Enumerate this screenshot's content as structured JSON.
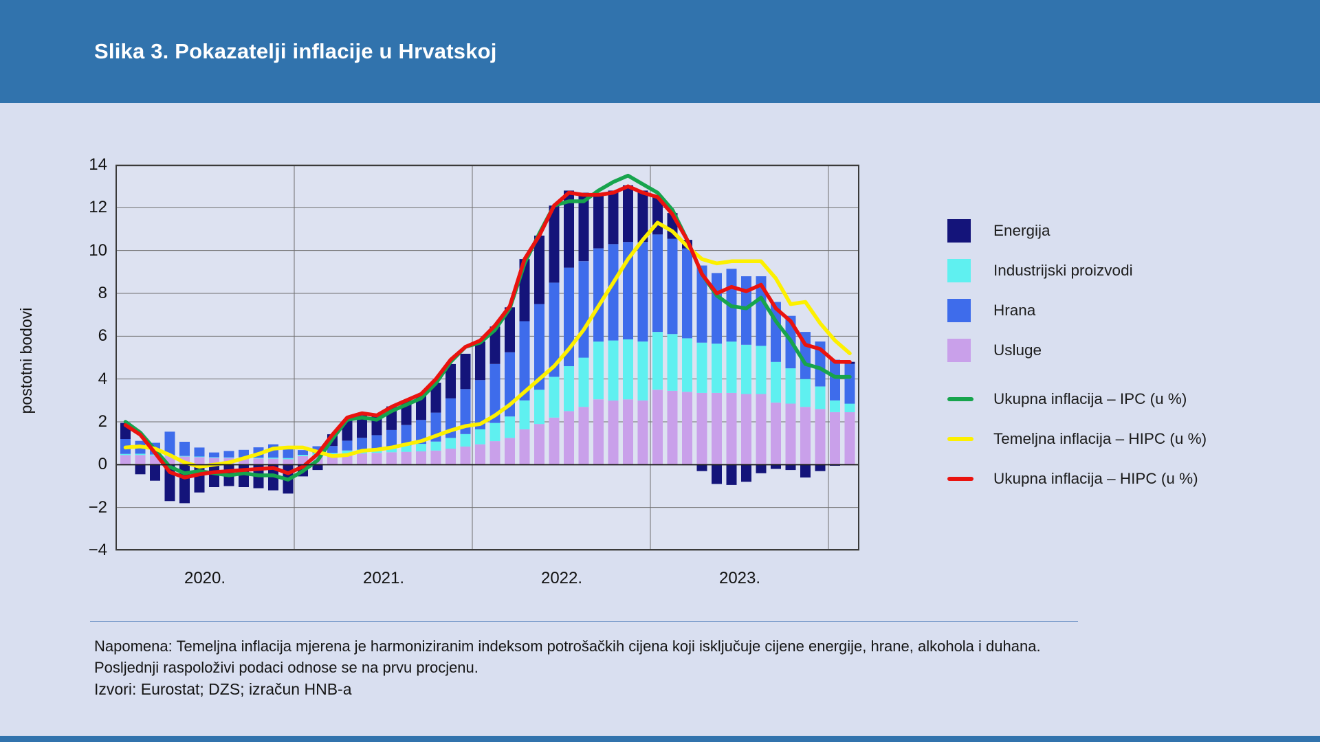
{
  "page": {
    "title": "Slika 3. Pokazatelji inflacije u Hrvatskoj"
  },
  "note": {
    "line1": "Napomena: Temeljna inflacija mjerena je harmoniziranim indeksom potrošačkih cijena koji isključuje cijene energije, hrane, alkohola i duhana. Posljednji raspoloživi podaci odnose se na prvu procjenu.",
    "line2": "Izvori: Eurostat; DZS; izračun HNB-a"
  },
  "colors": {
    "header": "#3173ad",
    "energija": "#14147a",
    "industrijski": "#5ff0f0",
    "hrana": "#3e6ceb",
    "usluge": "#c9a0ea",
    "ipc": "#17a44d",
    "temeljna": "#fdf000",
    "hipc": "#ea130f"
  },
  "legend": {
    "items": [
      {
        "label": "Energija",
        "color": "#14147a"
      },
      {
        "label": "Industrijski proizvodi",
        "color": "#5ff0f0"
      },
      {
        "label": "Hrana",
        "color": "#3e6ceb"
      },
      {
        "label": "Usluge",
        "color": "#c9a0ea"
      }
    ],
    "lines": [
      {
        "label": "Ukupna inflacija – IPC (u %)",
        "color": "#17a44d"
      },
      {
        "label": "Temeljna inflacija – HIPC (u %)",
        "color": "#fdf000"
      },
      {
        "label": "Ukupna inflacija – HIPC (u %)",
        "color": "#ea130f"
      }
    ]
  },
  "chart_data": {
    "type": "bar",
    "subtype": "stacked-monthly-contributions-with-lines",
    "title": "Slika 3. Pokazatelji inflacije u Hrvatskoj",
    "xlabel": "",
    "ylabel": "postotni bodovi",
    "ylim": [
      -4,
      14
    ],
    "grid": true,
    "legend_position": "right",
    "yticks": [
      {
        "v": 14,
        "label": "14"
      },
      {
        "v": 12,
        "label": "12"
      },
      {
        "v": 10,
        "label": "10"
      },
      {
        "v": 8,
        "label": "8"
      },
      {
        "v": 6,
        "label": "6"
      },
      {
        "v": 4,
        "label": "4"
      },
      {
        "v": 2,
        "label": "2"
      },
      {
        "v": 0,
        "label": "0"
      },
      {
        "v": -2,
        "label": "−2"
      },
      {
        "v": -4,
        "label": "−4"
      }
    ],
    "year_labels": [
      "2020.",
      "2021.",
      "2022.",
      "2023."
    ],
    "months": [
      "2020-01",
      "2020-02",
      "2020-03",
      "2020-04",
      "2020-05",
      "2020-06",
      "2020-07",
      "2020-08",
      "2020-09",
      "2020-10",
      "2020-11",
      "2020-12",
      "2021-01",
      "2021-02",
      "2021-03",
      "2021-04",
      "2021-05",
      "2021-06",
      "2021-07",
      "2021-08",
      "2021-09",
      "2021-10",
      "2021-11",
      "2021-12",
      "2022-01",
      "2022-02",
      "2022-03",
      "2022-04",
      "2022-05",
      "2022-06",
      "2022-07",
      "2022-08",
      "2022-09",
      "2022-10",
      "2022-11",
      "2022-12",
      "2023-01",
      "2023-02",
      "2023-03",
      "2023-04",
      "2023-05",
      "2023-06",
      "2023-07",
      "2023-08",
      "2023-09",
      "2023-10",
      "2023-11",
      "2023-12",
      "2024-01",
      "2024-02"
    ],
    "bar_series": [
      {
        "name": "Usluge",
        "color": "#c9a0ea",
        "values": [
          0.45,
          0.45,
          0.42,
          0.4,
          0.38,
          0.35,
          0.32,
          0.31,
          0.3,
          0.29,
          0.28,
          0.26,
          0.4,
          0.44,
          0.42,
          0.5,
          0.52,
          0.55,
          0.58,
          0.6,
          0.62,
          0.66,
          0.75,
          0.85,
          0.95,
          1.1,
          1.25,
          1.65,
          1.9,
          2.2,
          2.5,
          2.7,
          3.05,
          3.0,
          3.05,
          3.0,
          3.5,
          3.45,
          3.4,
          3.35,
          3.35,
          3.35,
          3.3,
          3.3,
          2.9,
          2.85,
          2.7,
          2.6,
          2.45,
          2.45
        ]
      },
      {
        "name": "Industrijski proizvodi",
        "color": "#5ff0f0",
        "values": [
          0.05,
          0.06,
          0.05,
          0.04,
          0.03,
          0.03,
          0.03,
          0.03,
          0.04,
          0.04,
          0.05,
          0.05,
          0.06,
          0.1,
          0.13,
          0.16,
          0.18,
          0.21,
          0.26,
          0.3,
          0.35,
          0.42,
          0.5,
          0.58,
          0.7,
          0.85,
          1.0,
          1.35,
          1.6,
          1.9,
          2.1,
          2.3,
          2.7,
          2.8,
          2.8,
          2.75,
          2.7,
          2.65,
          2.5,
          2.35,
          2.3,
          2.4,
          2.3,
          2.25,
          1.9,
          1.65,
          1.3,
          1.05,
          0.55,
          0.4
        ]
      },
      {
        "name": "Hrana",
        "color": "#3e6ceb",
        "values": [
          0.7,
          0.6,
          0.55,
          1.1,
          0.66,
          0.42,
          0.22,
          0.3,
          0.35,
          0.48,
          0.62,
          0.42,
          0.22,
          0.32,
          0.32,
          0.46,
          0.55,
          0.62,
          0.78,
          0.95,
          1.12,
          1.35,
          1.85,
          2.1,
          2.3,
          2.75,
          3.0,
          3.7,
          4.0,
          4.4,
          4.6,
          4.5,
          4.35,
          4.5,
          4.55,
          4.65,
          4.55,
          4.45,
          4.2,
          3.6,
          3.3,
          3.4,
          3.2,
          3.25,
          2.8,
          2.45,
          2.2,
          2.1,
          1.9,
          1.85
        ]
      },
      {
        "name": "Energija",
        "color": "#14147a",
        "values": [
          0.75,
          -0.45,
          -0.75,
          -1.7,
          -1.8,
          -1.3,
          -1.05,
          -1.0,
          -1.05,
          -1.1,
          -1.2,
          -1.35,
          -0.55,
          -0.25,
          0.55,
          0.95,
          1.05,
          1.0,
          1.1,
          1.15,
          1.2,
          1.4,
          1.6,
          1.65,
          1.8,
          1.75,
          2.1,
          2.9,
          3.2,
          3.6,
          3.6,
          3.2,
          2.5,
          2.5,
          2.65,
          2.4,
          1.75,
          1.2,
          0.4,
          -0.3,
          -0.9,
          -0.95,
          -0.8,
          -0.4,
          -0.2,
          -0.25,
          -0.6,
          -0.3,
          -0.05,
          0.1
        ]
      }
    ],
    "line_series": [
      {
        "name": "Ukupna inflacija – IPC (u %)",
        "color": "#17a44d",
        "values": [
          2.0,
          1.5,
          0.7,
          -0.1,
          -0.4,
          -0.3,
          -0.4,
          -0.5,
          -0.4,
          -0.5,
          -0.5,
          -0.7,
          -0.3,
          0.2,
          1.2,
          2.1,
          2.2,
          2.1,
          2.5,
          2.8,
          3.1,
          3.8,
          4.8,
          5.5,
          5.7,
          6.3,
          7.3,
          9.4,
          10.8,
          12.1,
          12.3,
          12.3,
          12.8,
          13.2,
          13.5,
          13.1,
          12.7,
          11.9,
          10.5,
          8.9,
          7.9,
          7.4,
          7.3,
          7.8,
          6.7,
          5.8,
          4.7,
          4.5,
          4.1,
          4.1
        ]
      },
      {
        "name": "Temeljna inflacija – HIPC (u %)",
        "color": "#fdf000",
        "values": [
          0.8,
          0.85,
          0.75,
          0.45,
          0.1,
          -0.1,
          0.0,
          0.1,
          0.3,
          0.5,
          0.75,
          0.8,
          0.8,
          0.6,
          0.4,
          0.45,
          0.65,
          0.7,
          0.8,
          0.95,
          1.1,
          1.35,
          1.6,
          1.8,
          1.9,
          2.3,
          2.8,
          3.4,
          4.0,
          4.6,
          5.4,
          6.3,
          7.4,
          8.5,
          9.6,
          10.5,
          11.3,
          10.9,
          10.2,
          9.6,
          9.4,
          9.5,
          9.5,
          9.5,
          8.7,
          7.5,
          7.6,
          6.6,
          5.8,
          5.2
        ]
      },
      {
        "name": "Ukupna inflacija – HIPC (u %)",
        "color": "#ea130f",
        "values": [
          1.85,
          1.4,
          0.55,
          -0.35,
          -0.6,
          -0.45,
          -0.35,
          -0.3,
          -0.25,
          -0.2,
          -0.15,
          -0.4,
          -0.1,
          0.5,
          1.4,
          2.2,
          2.4,
          2.3,
          2.7,
          3.0,
          3.3,
          4.0,
          4.9,
          5.5,
          5.8,
          6.5,
          7.4,
          9.6,
          10.7,
          12.1,
          12.7,
          12.6,
          12.6,
          12.7,
          13.0,
          12.7,
          12.5,
          11.7,
          10.5,
          8.9,
          8.0,
          8.3,
          8.1,
          8.4,
          7.3,
          6.7,
          5.6,
          5.4,
          4.8,
          4.8
        ]
      }
    ]
  }
}
